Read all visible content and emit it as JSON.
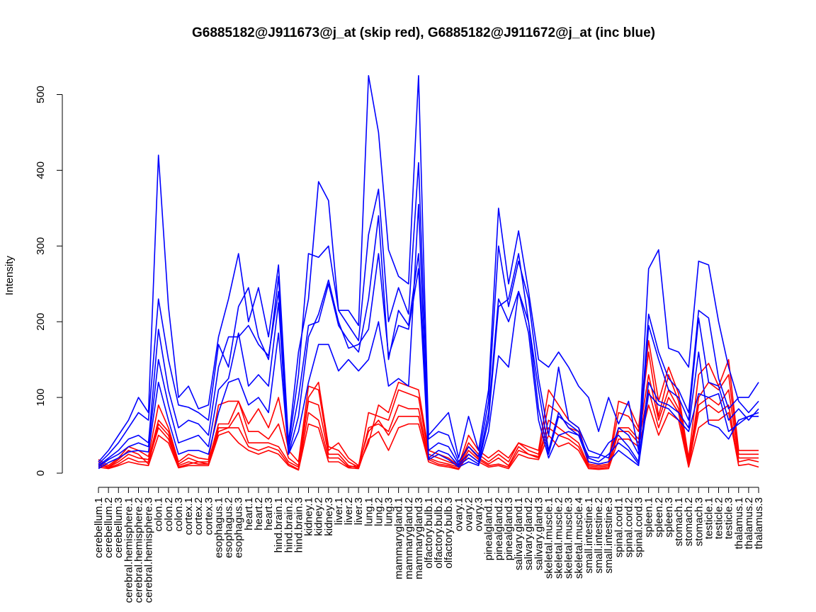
{
  "chart_data": {
    "type": "line",
    "title": "G6885182@J911673@j_at (skip red), G6885182@J911672@j_at (inc blue)",
    "xlabel": "",
    "ylabel": "Intensity",
    "ylim": [
      0,
      520
    ],
    "yticks": [
      0,
      100,
      200,
      300,
      400,
      500
    ],
    "grid": false,
    "legend": "none",
    "categories": [
      "cerebellum.1",
      "cerebellum.2",
      "cerebellum.3",
      "cerebral.hemisphere.1",
      "cerebral.hemisphere.2",
      "cerebral.hemisphere.3",
      "colon.1",
      "colon.2",
      "colon.3",
      "cortex.1",
      "cortex.2",
      "cortex.3",
      "esophagus.1",
      "esophagus.2",
      "esophagus.3",
      "heart.1",
      "heart.2",
      "heart.3",
      "hind.brain.1",
      "hind.brain.2",
      "hind.brain.3",
      "kidney.1",
      "kidney.2",
      "kidney.3",
      "liver.1",
      "liver.2",
      "liver.3",
      "lung.1",
      "lung.2",
      "lung.3",
      "mammarygland.1",
      "mammarygland.2",
      "mammarygland.3",
      "olfactory.bulb.1",
      "olfactory.bulb.2",
      "olfactory.bulb.3",
      "ovary.1",
      "ovary.2",
      "ovary.3",
      "pinealgland.1",
      "pinealgland.2",
      "pinealgland.3",
      "salivary.gland.1",
      "salivary.gland.2",
      "salivary.gland.3",
      "skeletal.muscle.1",
      "skeletal.muscle.2",
      "skeletal.muscle.3",
      "skeletal.muscle.4",
      "small.intestine.1",
      "small.intestine.2",
      "small.intestine.3",
      "spinal.cord.1",
      "spinal.cord.2",
      "spinal.cord.3",
      "spleen.1",
      "spleen.2",
      "spleen.3",
      "stomach.1",
      "stomach.2",
      "stomach.3",
      "testicle.1",
      "testicle.2",
      "testicle.3",
      "thalamus.1",
      "thalamus.2",
      "thalamus.3"
    ],
    "probe_colors": {
      "skip": "#ff0000",
      "inc": "#0000ff"
    },
    "series": [
      {
        "group": "inc",
        "values": [
          15,
          30,
          50,
          70,
          100,
          80,
          420,
          220,
          100,
          115,
          85,
          90,
          180,
          230,
          290,
          200,
          245,
          180,
          275,
          40,
          160,
          230,
          385,
          360,
          215,
          215,
          195,
          525,
          450,
          295,
          260,
          250,
          525,
          50,
          65,
          80,
          20,
          75,
          30,
          110,
          350,
          250,
          320,
          240,
          150,
          140,
          160,
          140,
          115,
          100,
          55,
          100,
          65,
          95,
          30,
          270,
          295,
          165,
          160,
          140,
          280,
          275,
          200,
          140,
          95,
          80,
          95
        ]
      },
      {
        "group": "inc",
        "values": [
          12,
          25,
          40,
          60,
          80,
          70,
          230,
          150,
          90,
          87,
          80,
          70,
          170,
          140,
          220,
          245,
          180,
          150,
          260,
          35,
          130,
          290,
          285,
          300,
          215,
          195,
          175,
          315,
          375,
          200,
          245,
          210,
          410,
          45,
          55,
          50,
          15,
          35,
          22,
          95,
          300,
          220,
          280,
          230,
          125,
          50,
          140,
          70,
          60,
          30,
          25,
          20,
          60,
          50,
          25,
          210,
          160,
          125,
          110,
          80,
          215,
          205,
          125,
          85,
          100,
          100,
          120
        ]
      },
      {
        "group": "inc",
        "values": [
          10,
          20,
          30,
          45,
          50,
          40,
          190,
          110,
          60,
          70,
          65,
          50,
          140,
          180,
          180,
          195,
          170,
          155,
          240,
          30,
          100,
          195,
          200,
          250,
          195,
          175,
          160,
          230,
          340,
          150,
          215,
          195,
          290,
          30,
          40,
          35,
          12,
          25,
          15,
          80,
          230,
          200,
          240,
          200,
          110,
          30,
          80,
          60,
          50,
          22,
          20,
          40,
          50,
          35,
          15,
          195,
          150,
          110,
          100,
          70,
          205,
          120,
          115,
          70,
          85,
          70,
          85
        ]
      },
      {
        "group": "inc",
        "values": [
          8,
          18,
          25,
          35,
          40,
          35,
          150,
          90,
          40,
          45,
          50,
          35,
          110,
          125,
          185,
          115,
          130,
          115,
          225,
          25,
          75,
          180,
          210,
          255,
          200,
          165,
          170,
          190,
          290,
          155,
          195,
          190,
          270,
          20,
          30,
          25,
          10,
          20,
          12,
          70,
          220,
          230,
          290,
          200,
          85,
          25,
          75,
          65,
          55,
          20,
          15,
          25,
          40,
          30,
          12,
          120,
          95,
          90,
          80,
          60,
          160,
          65,
          60,
          45,
          70,
          75,
          80
        ]
      },
      {
        "group": "inc",
        "values": [
          6,
          14,
          20,
          28,
          30,
          28,
          120,
          70,
          25,
          30,
          30,
          25,
          80,
          120,
          125,
          90,
          100,
          80,
          185,
          25,
          55,
          120,
          170,
          170,
          135,
          150,
          135,
          150,
          200,
          115,
          125,
          115,
          355,
          18,
          25,
          18,
          8,
          15,
          10,
          55,
          155,
          140,
          240,
          185,
          70,
          20,
          50,
          55,
          50,
          15,
          12,
          15,
          30,
          20,
          10,
          105,
          90,
          85,
          70,
          55,
          105,
          100,
          105,
          55,
          65,
          75,
          75
        ]
      },
      {
        "group": "skip",
        "values": [
          18,
          10,
          20,
          35,
          30,
          22,
          90,
          60,
          15,
          25,
          20,
          18,
          90,
          95,
          95,
          65,
          85,
          60,
          100,
          30,
          15,
          115,
          110,
          30,
          40,
          20,
          10,
          40,
          90,
          80,
          120,
          115,
          110,
          30,
          25,
          20,
          10,
          50,
          30,
          20,
          30,
          20,
          40,
          35,
          30,
          110,
          90,
          70,
          60,
          15,
          12,
          15,
          95,
          90,
          60,
          175,
          95,
          140,
          105,
          20,
          130,
          145,
          115,
          150,
          30,
          30,
          30
        ]
      },
      {
        "group": "skip",
        "values": [
          15,
          8,
          15,
          25,
          20,
          18,
          70,
          55,
          12,
          20,
          15,
          15,
          65,
          65,
          95,
          55,
          55,
          45,
          65,
          20,
          10,
          100,
          120,
          35,
          30,
          15,
          8,
          80,
          75,
          70,
          110,
          105,
          100,
          25,
          20,
          15,
          10,
          40,
          25,
          15,
          25,
          15,
          40,
          30,
          25,
          90,
          80,
          60,
          55,
          12,
          10,
          12,
          80,
          75,
          55,
          160,
          75,
          130,
          95,
          15,
          100,
          120,
          110,
          130,
          25,
          25,
          25
        ]
      },
      {
        "group": "skip",
        "values": [
          12,
          7,
          12,
          20,
          15,
          15,
          60,
          45,
          10,
          15,
          12,
          12,
          60,
          60,
          80,
          40,
          40,
          40,
          35,
          15,
          8,
          95,
          90,
          25,
          25,
          10,
          7,
          60,
          65,
          55,
          90,
          85,
          85,
          20,
          15,
          12,
          8,
          35,
          20,
          12,
          20,
          10,
          35,
          25,
          22,
          70,
          60,
          50,
          40,
          10,
          8,
          10,
          60,
          60,
          45,
          130,
          70,
          110,
          85,
          12,
          90,
          100,
          90,
          110,
          20,
          20,
          20
        ]
      },
      {
        "group": "skip",
        "values": [
          10,
          8,
          18,
          30,
          25,
          12,
          65,
          50,
          8,
          12,
          15,
          12,
          55,
          60,
          60,
          35,
          30,
          35,
          30,
          12,
          5,
          80,
          70,
          20,
          20,
          8,
          10,
          55,
          70,
          50,
          75,
          75,
          75,
          18,
          12,
          10,
          6,
          30,
          18,
          10,
          12,
          8,
          30,
          25,
          20,
          60,
          50,
          45,
          35,
          8,
          6,
          8,
          55,
          55,
          40,
          110,
          60,
          100,
          80,
          10,
          80,
          90,
          80,
          90,
          15,
          18,
          15
        ]
      },
      {
        "group": "skip",
        "values": [
          8,
          6,
          10,
          15,
          12,
          10,
          50,
          40,
          7,
          10,
          10,
          10,
          50,
          55,
          40,
          30,
          25,
          30,
          25,
          10,
          4,
          65,
          60,
          15,
          15,
          7,
          6,
          45,
          55,
          30,
          60,
          65,
          65,
          15,
          10,
          8,
          5,
          25,
          15,
          8,
          10,
          6,
          25,
          20,
          18,
          50,
          35,
          40,
          30,
          6,
          5,
          6,
          45,
          45,
          35,
          90,
          50,
          80,
          70,
          8,
          60,
          70,
          70,
          80,
          10,
          12,
          8
        ]
      }
    ]
  }
}
